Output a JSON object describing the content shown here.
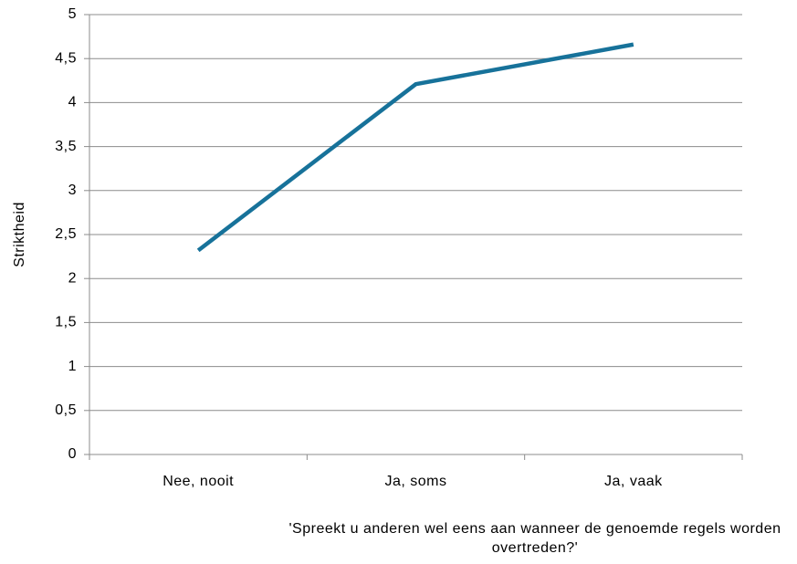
{
  "chart_data": {
    "type": "line",
    "categories": [
      "Nee, nooit",
      "Ja, soms",
      "Ja, vaak"
    ],
    "values": [
      2.32,
      4.21,
      4.66
    ],
    "color": "#17729a",
    "y_label": "Striktheid",
    "x_label": "'Spreekt u anderen wel eens aan wanneer de genoemde regels worden overtreden?'",
    "ylim": [
      0,
      5
    ],
    "yticks": [
      0,
      {
        "value": 0.5,
        "label": "0,5"
      },
      1,
      {
        "value": 1.5,
        "label": "1,5"
      },
      2,
      {
        "value": 2.5,
        "label": "2,5"
      },
      3,
      {
        "value": 3.5,
        "label": "3,5"
      },
      4,
      {
        "value": 4.5,
        "label": "4,5"
      },
      5
    ],
    "grid": true
  }
}
